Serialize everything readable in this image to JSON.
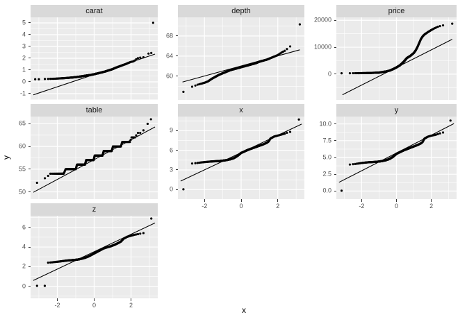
{
  "figure": {
    "background": "#FFFFFF",
    "panel_bg": "#EBEBEB",
    "strip_bg": "#D9D9D9",
    "grid_color": "#FFFFFF",
    "point_color": "#000000",
    "line_color": "#000000",
    "axis_text_color": "#4D4D4D",
    "strip_text_color": "#1A1A1A",
    "tick_mark_color": "#333333"
  },
  "chart_data": {
    "type": "scatter",
    "subtype": "faceted-qq-plot",
    "title": "",
    "xlabel": "x",
    "ylabel": "y",
    "xlim": [
      -3.45,
      3.45
    ],
    "xticks": [
      -2,
      0,
      2
    ],
    "xtick_labels": [
      "-2",
      "0",
      "2"
    ],
    "x_minor": [
      -3,
      -1,
      1,
      3
    ],
    "grid": true,
    "legend": "none",
    "facets": [
      {
        "name": "carat",
        "row": 0,
        "col": 0,
        "ylim": [
          -1.53,
          5.47
        ],
        "yticks": [
          -1,
          0,
          1,
          2,
          3,
          4,
          5
        ],
        "ytick_labels": [
          "-1",
          "0",
          "1",
          "2",
          "3",
          "4",
          "5"
        ],
        "show_x_axis": false,
        "line": [
          -3.3,
          -1.1,
          3.3,
          2.35
        ],
        "n_dots": 400,
        "curve": [
          [
            -2.9,
            0.23
          ],
          [
            -2.5,
            0.25
          ],
          [
            -2.1,
            0.27
          ],
          [
            -1.8,
            0.3
          ],
          [
            -1.5,
            0.33
          ],
          [
            -1.2,
            0.37
          ],
          [
            -1.0,
            0.4
          ],
          [
            -0.8,
            0.44
          ],
          [
            -0.6,
            0.49
          ],
          [
            -0.4,
            0.54
          ],
          [
            -0.2,
            0.58
          ],
          [
            0,
            0.65
          ],
          [
            0.2,
            0.72
          ],
          [
            0.4,
            0.8
          ],
          [
            0.6,
            0.88
          ],
          [
            0.8,
            0.98
          ],
          [
            1.0,
            1.08
          ],
          [
            1.2,
            1.22
          ],
          [
            1.4,
            1.33
          ],
          [
            1.55,
            1.42
          ],
          [
            1.7,
            1.5
          ],
          [
            1.85,
            1.6
          ],
          [
            2.0,
            1.7
          ],
          [
            2.1,
            1.72
          ],
          [
            2.2,
            1.8
          ],
          [
            2.3,
            1.95
          ],
          [
            2.4,
            2.03
          ],
          [
            2.6,
            2.07
          ],
          [
            2.8,
            2.1
          ]
        ],
        "outliers": [
          [
            -3.2,
            0.22
          ],
          [
            -3.0,
            0.22
          ],
          [
            2.95,
            2.4
          ],
          [
            3.1,
            2.45
          ],
          [
            3.2,
            5.01
          ]
        ]
      },
      {
        "name": "depth",
        "row": 0,
        "col": 1,
        "ylim": [
          55.3,
          71.7
        ],
        "yticks": [
          60,
          64,
          68
        ],
        "ytick_labels": [
          "60",
          "64",
          "68"
        ],
        "show_x_axis": false,
        "line": [
          -3.2,
          58.85,
          3.2,
          65.25
        ],
        "n_dots": 400,
        "curve": [
          [
            -2.95,
            57.5
          ],
          [
            -2.8,
            57.8
          ],
          [
            -2.6,
            58.0
          ],
          [
            -2.4,
            58.3
          ],
          [
            -2.2,
            58.5
          ],
          [
            -2.0,
            58.7
          ],
          [
            -1.8,
            59.0
          ],
          [
            -1.6,
            59.5
          ],
          [
            -1.4,
            59.9
          ],
          [
            -1.2,
            60.3
          ],
          [
            -1.0,
            60.6
          ],
          [
            -0.8,
            60.9
          ],
          [
            -0.6,
            61.2
          ],
          [
            -0.4,
            61.4
          ],
          [
            -0.2,
            61.6
          ],
          [
            0,
            61.8
          ],
          [
            0.2,
            62.0
          ],
          [
            0.4,
            62.2
          ],
          [
            0.6,
            62.4
          ],
          [
            0.8,
            62.6
          ],
          [
            1.0,
            62.9
          ],
          [
            1.2,
            63.1
          ],
          [
            1.4,
            63.3
          ],
          [
            1.6,
            63.6
          ],
          [
            1.8,
            63.9
          ],
          [
            2.0,
            64.2
          ],
          [
            2.2,
            64.7
          ],
          [
            2.4,
            65.1
          ],
          [
            2.6,
            65.7
          ],
          [
            2.8,
            66.3
          ],
          [
            3.0,
            67.2
          ]
        ],
        "outliers": [
          [
            -3.15,
            56.9
          ],
          [
            3.2,
            70.3
          ]
        ]
      },
      {
        "name": "price",
        "row": 0,
        "col": 2,
        "ylim": [
          -9560,
          21100
        ],
        "yticks": [
          0,
          10000,
          20000
        ],
        "ytick_labels": [
          "0",
          "10000",
          "20000"
        ],
        "show_x_axis": false,
        "line": [
          -3.1,
          -7650,
          3.2,
          12950
        ],
        "n_dots": 400,
        "curve": [
          [
            -2.9,
            330
          ],
          [
            -2.5,
            345
          ],
          [
            -2.1,
            370
          ],
          [
            -1.8,
            400
          ],
          [
            -1.5,
            450
          ],
          [
            -1.2,
            520
          ],
          [
            -1.0,
            580
          ],
          [
            -0.8,
            800
          ],
          [
            -0.6,
            1000
          ],
          [
            -0.4,
            1300
          ],
          [
            -0.2,
            1850
          ],
          [
            0,
            2500
          ],
          [
            0.2,
            3300
          ],
          [
            0.4,
            4500
          ],
          [
            0.6,
            6000
          ],
          [
            0.8,
            6800
          ],
          [
            1.0,
            7900
          ],
          [
            1.1,
            8800
          ],
          [
            1.2,
            10000
          ],
          [
            1.3,
            11500
          ],
          [
            1.4,
            13000
          ],
          [
            1.5,
            14000
          ],
          [
            1.6,
            14700
          ],
          [
            1.8,
            15600
          ],
          [
            2.0,
            16400
          ],
          [
            2.2,
            17100
          ],
          [
            2.4,
            17650
          ],
          [
            2.6,
            18050
          ],
          [
            2.8,
            18250
          ],
          [
            2.95,
            18400
          ]
        ],
        "outliers": [
          [
            -3.15,
            330
          ],
          [
            3.2,
            18750
          ]
        ]
      },
      {
        "name": "table",
        "row": 1,
        "col": 0,
        "ylim": [
          48.4,
          66.6
        ],
        "yticks": [
          50,
          55,
          60,
          65
        ],
        "ytick_labels": [
          "50",
          "55",
          "60",
          "65"
        ],
        "show_x_axis": false,
        "line": [
          -3.3,
          49.9,
          3.3,
          64.3
        ],
        "n_dots": 400,
        "curve": [
          [
            -2.9,
            53
          ],
          [
            -2.55,
            53
          ],
          [
            -2.45,
            54
          ],
          [
            -1.65,
            54
          ],
          [
            -1.55,
            55
          ],
          [
            -1.0,
            55
          ],
          [
            -0.93,
            56
          ],
          [
            -0.5,
            56
          ],
          [
            -0.43,
            57
          ],
          [
            -0.03,
            57
          ],
          [
            0.03,
            58
          ],
          [
            0.45,
            58
          ],
          [
            0.52,
            59
          ],
          [
            0.95,
            59
          ],
          [
            1.02,
            60
          ],
          [
            1.45,
            60
          ],
          [
            1.52,
            61
          ],
          [
            1.95,
            61
          ],
          [
            2.02,
            62
          ],
          [
            2.25,
            62
          ],
          [
            2.32,
            63
          ],
          [
            2.5,
            63
          ],
          [
            2.57,
            63.5
          ],
          [
            2.75,
            63.6
          ]
        ],
        "outliers": [
          [
            -3.1,
            52
          ],
          [
            2.9,
            65
          ],
          [
            3.08,
            66
          ]
        ]
      },
      {
        "name": "x",
        "row": 1,
        "col": 1,
        "ylim": [
          -1.45,
          11.15
        ],
        "yticks": [
          0,
          3,
          6,
          9
        ],
        "ytick_labels": [
          "0",
          "3",
          "6",
          "9"
        ],
        "show_x_axis": true,
        "line": [
          -3.3,
          1.3,
          3.3,
          10.0
        ],
        "n_dots": 400,
        "curve": [
          [
            -2.85,
            3.95
          ],
          [
            -2.6,
            4.0
          ],
          [
            -2.4,
            4.06
          ],
          [
            -2.2,
            4.14
          ],
          [
            -2.0,
            4.2
          ],
          [
            -1.8,
            4.25
          ],
          [
            -1.6,
            4.3
          ],
          [
            -1.4,
            4.33
          ],
          [
            -1.2,
            4.36
          ],
          [
            -1.0,
            4.42
          ],
          [
            -0.8,
            4.5
          ],
          [
            -0.6,
            4.62
          ],
          [
            -0.4,
            4.8
          ],
          [
            -0.2,
            5.15
          ],
          [
            0,
            5.6
          ],
          [
            0.2,
            5.85
          ],
          [
            0.4,
            6.1
          ],
          [
            0.6,
            6.3
          ],
          [
            0.8,
            6.5
          ],
          [
            1.0,
            6.7
          ],
          [
            1.2,
            6.9
          ],
          [
            1.4,
            7.15
          ],
          [
            1.5,
            7.35
          ],
          [
            1.6,
            7.8
          ],
          [
            1.8,
            8.1
          ],
          [
            2.0,
            8.25
          ],
          [
            2.2,
            8.4
          ],
          [
            2.4,
            8.55
          ],
          [
            2.6,
            8.8
          ],
          [
            2.9,
            8.85
          ]
        ],
        "outliers": [
          [
            -3.15,
            0.05
          ],
          [
            3.15,
            10.7
          ]
        ]
      },
      {
        "name": "y",
        "row": 1,
        "col": 2,
        "ylim": [
          -1.2,
          11.1
        ],
        "yticks": [
          0,
          2.5,
          5,
          7.5,
          10
        ],
        "ytick_labels": [
          "0.0",
          "2.5",
          "5.0",
          "7.5",
          "10.0"
        ],
        "show_x_axis": true,
        "line": [
          -3.3,
          1.3,
          3.3,
          10.05
        ],
        "n_dots": 400,
        "curve": [
          [
            -2.85,
            3.9
          ],
          [
            -2.6,
            3.97
          ],
          [
            -2.4,
            4.03
          ],
          [
            -2.2,
            4.1
          ],
          [
            -2.0,
            4.18
          ],
          [
            -1.8,
            4.24
          ],
          [
            -1.6,
            4.29
          ],
          [
            -1.4,
            4.32
          ],
          [
            -1.2,
            4.35
          ],
          [
            -1.0,
            4.4
          ],
          [
            -0.8,
            4.48
          ],
          [
            -0.6,
            4.6
          ],
          [
            -0.4,
            4.78
          ],
          [
            -0.2,
            5.1
          ],
          [
            0,
            5.55
          ],
          [
            0.2,
            5.8
          ],
          [
            0.4,
            6.05
          ],
          [
            0.6,
            6.25
          ],
          [
            0.8,
            6.45
          ],
          [
            1.0,
            6.65
          ],
          [
            1.2,
            6.85
          ],
          [
            1.4,
            7.1
          ],
          [
            1.5,
            7.3
          ],
          [
            1.6,
            7.8
          ],
          [
            1.8,
            8.1
          ],
          [
            2.0,
            8.25
          ],
          [
            2.2,
            8.35
          ],
          [
            2.4,
            8.5
          ],
          [
            2.6,
            8.7
          ],
          [
            2.9,
            8.78
          ]
        ],
        "outliers": [
          [
            -3.15,
            0.05
          ],
          [
            3.1,
            10.5
          ]
        ]
      },
      {
        "name": "z",
        "row": 2,
        "col": 0,
        "ylim": [
          -1.22,
          7.18
        ],
        "yticks": [
          0,
          2,
          4,
          6
        ],
        "ytick_labels": [
          "0",
          "2",
          "4",
          "6"
        ],
        "show_x_axis": true,
        "line": [
          -3.3,
          0.6,
          3.3,
          6.45
        ],
        "n_dots": 400,
        "curve": [
          [
            -2.55,
            2.4
          ],
          [
            -2.3,
            2.44
          ],
          [
            -2.1,
            2.48
          ],
          [
            -1.9,
            2.52
          ],
          [
            -1.7,
            2.57
          ],
          [
            -1.5,
            2.62
          ],
          [
            -1.3,
            2.65
          ],
          [
            -1.1,
            2.68
          ],
          [
            -0.9,
            2.72
          ],
          [
            -0.7,
            2.8
          ],
          [
            -0.5,
            2.9
          ],
          [
            -0.3,
            3.05
          ],
          [
            -0.1,
            3.25
          ],
          [
            0.1,
            3.45
          ],
          [
            0.3,
            3.65
          ],
          [
            0.5,
            3.85
          ],
          [
            0.7,
            3.97
          ],
          [
            0.9,
            4.08
          ],
          [
            1.1,
            4.22
          ],
          [
            1.3,
            4.4
          ],
          [
            1.45,
            4.55
          ],
          [
            1.6,
            4.85
          ],
          [
            1.8,
            5.05
          ],
          [
            2.0,
            5.15
          ],
          [
            2.2,
            5.25
          ],
          [
            2.4,
            5.32
          ],
          [
            2.6,
            5.4
          ],
          [
            2.8,
            5.45
          ]
        ],
        "outliers": [
          [
            -3.1,
            0.05
          ],
          [
            -2.68,
            0.05
          ],
          [
            3.1,
            6.9
          ]
        ]
      }
    ]
  }
}
